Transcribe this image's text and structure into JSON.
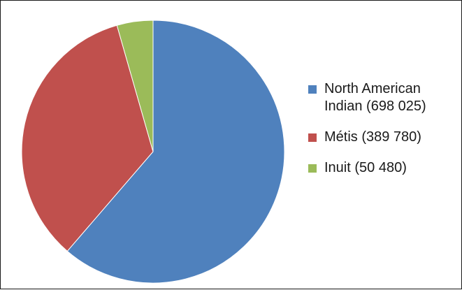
{
  "chart_data": {
    "type": "pie",
    "categories": [
      "North American Indian (698 025)",
      "Métis (389 780)",
      "Inuit (50 480)"
    ],
    "values": [
      698025,
      389780,
      50480
    ],
    "colors": [
      "#4f81bd",
      "#c0504d",
      "#9bbb59"
    ],
    "title": "",
    "legend_position": "right"
  },
  "legend": {
    "items": [
      {
        "label": "North American Indian (698 025)",
        "color": "#4f81bd"
      },
      {
        "label": "Métis (389 780)",
        "color": "#c0504d"
      },
      {
        "label": "Inuit (50 480)",
        "color": "#9bbb59"
      }
    ]
  }
}
